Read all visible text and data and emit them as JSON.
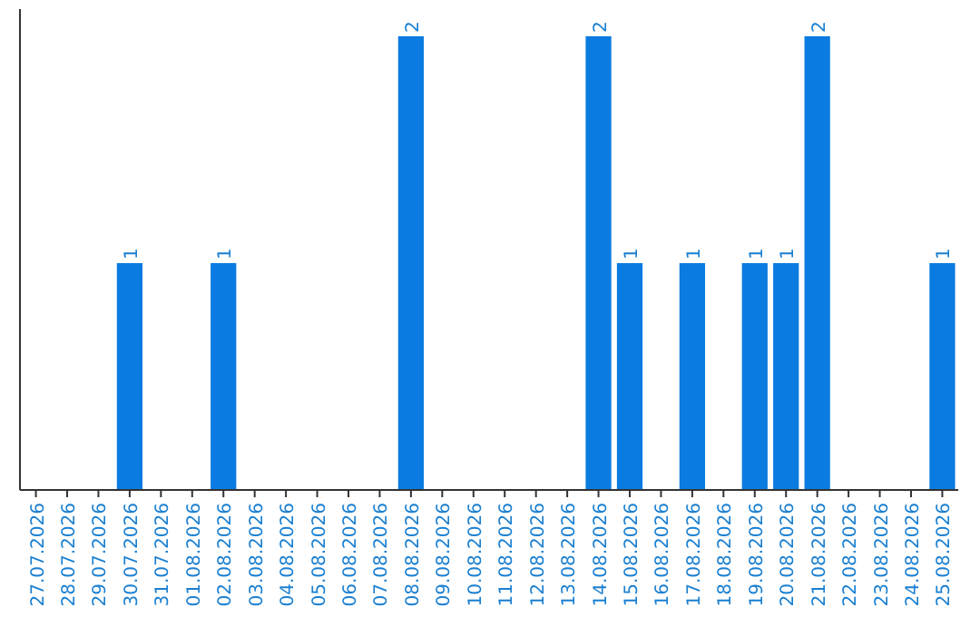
{
  "chart_data": {
    "type": "bar",
    "categories": [
      "27.07.2026",
      "28.07.2026",
      "29.07.2026",
      "30.07.2026",
      "31.07.2026",
      "01.08.2026",
      "02.08.2026",
      "03.08.2026",
      "04.08.2026",
      "05.08.2026",
      "06.08.2026",
      "07.08.2026",
      "08.08.2026",
      "09.08.2026",
      "10.08.2026",
      "11.08.2026",
      "12.08.2026",
      "13.08.2026",
      "14.08.2026",
      "15.08.2026",
      "16.08.2026",
      "17.08.2026",
      "18.08.2026",
      "19.08.2026",
      "20.08.2026",
      "21.08.2026",
      "22.08.2026",
      "23.08.2026",
      "24.08.2026",
      "25.08.2026"
    ],
    "values": [
      0,
      0,
      0,
      1,
      0,
      0,
      1,
      0,
      0,
      0,
      0,
      0,
      2,
      0,
      0,
      0,
      0,
      0,
      2,
      1,
      0,
      1,
      0,
      1,
      1,
      2,
      0,
      0,
      0,
      1
    ],
    "value_labels": [
      null,
      null,
      null,
      "1",
      null,
      null,
      "1",
      null,
      null,
      null,
      null,
      null,
      "2",
      null,
      null,
      null,
      null,
      null,
      "2",
      "1",
      null,
      "1",
      null,
      "1",
      "1",
      "2",
      null,
      null,
      null,
      "1"
    ],
    "color": "#0a7be0"
  }
}
